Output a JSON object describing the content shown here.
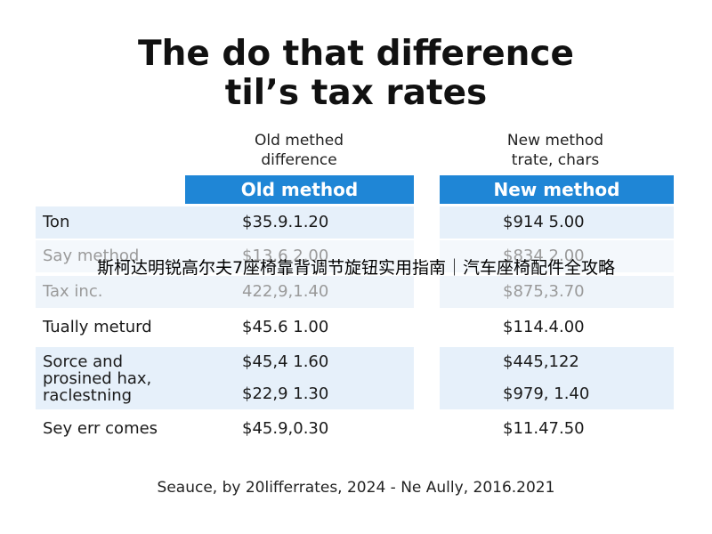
{
  "header": {
    "title": [
      "The do that difference",
      "til’s tax rates"
    ]
  },
  "columns": [
    {
      "subhead": [
        "Old methed",
        "difference"
      ],
      "label": "Old method"
    },
    {
      "subhead": [
        "New method",
        "trate, chars"
      ],
      "label": "New method"
    }
  ],
  "table": {
    "rows": [
      {
        "label": [
          "Ton"
        ],
        "old": [
          "$35.9.1.20"
        ],
        "new": [
          "$914 5.00"
        ]
      },
      {
        "label": [
          "Say method"
        ],
        "old": [
          "$13.6 2.00"
        ],
        "new": [
          "$834 2.00"
        ]
      },
      {
        "label": [
          "Tax inc."
        ],
        "old": [
          "422,9,1.40"
        ],
        "new": [
          "$875,3.70"
        ]
      },
      {
        "label": [
          "Tually meturd"
        ],
        "old": [
          "$45.6 1.00"
        ],
        "new": [
          "$114.4.00"
        ]
      },
      {
        "label": [
          "Sorce and",
          "prosined hax,",
          "raclestning"
        ],
        "old": [
          "$45,4 1.60",
          "$22,9 1.30"
        ],
        "new": [
          "$445,122",
          "$979, 1.40"
        ]
      },
      {
        "label": [
          "Sey err comes"
        ],
        "old": [
          "$45.9,0.30"
        ],
        "new": [
          "$11.47.50"
        ]
      }
    ]
  },
  "footer": {
    "source": "Seauce, by 20lifferrates, 2024 - Ne Aully, 2016.2021"
  },
  "overlay": {
    "caption": "斯柯达明锐高尔夫7座椅靠背调节旋钮实用指南｜汽车座椅配件全攻略"
  }
}
